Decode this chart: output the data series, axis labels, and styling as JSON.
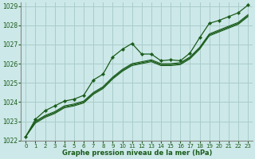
{
  "background_color": "#cce8e8",
  "grid_color": "#aacccc",
  "line_color": "#1a5c1a",
  "xlabel": "Graphe pression niveau de la mer (hPa)",
  "xlim": [
    -0.5,
    23.5
  ],
  "ylim": [
    1022,
    1029.2
  ],
  "yticks": [
    1022,
    1023,
    1024,
    1025,
    1026,
    1027,
    1028,
    1029
  ],
  "xticks": [
    0,
    1,
    2,
    3,
    4,
    5,
    6,
    7,
    8,
    9,
    10,
    11,
    12,
    13,
    14,
    15,
    16,
    17,
    18,
    19,
    20,
    21,
    22,
    23
  ],
  "series_with_markers": [
    1022.2,
    1023.1,
    1023.55,
    1023.8,
    1024.05,
    1024.15,
    1024.35,
    1025.15,
    1025.45,
    1026.35,
    1026.75,
    1027.05,
    1026.5,
    1026.5,
    1026.15,
    1026.2,
    1026.15,
    1026.55,
    1027.35,
    1028.1,
    1028.25,
    1028.45,
    1028.65,
    1029.05
  ],
  "series_linear": [
    [
      1022.2,
      1023.0,
      1023.3,
      1023.5,
      1023.8,
      1023.9,
      1024.05,
      1024.5,
      1024.8,
      1025.3,
      1025.7,
      1026.0,
      1026.1,
      1026.2,
      1026.0,
      1026.0,
      1026.05,
      1026.35,
      1026.85,
      1027.55,
      1027.75,
      1027.95,
      1028.15,
      1028.55
    ],
    [
      1022.2,
      1022.95,
      1023.25,
      1023.45,
      1023.75,
      1023.85,
      1024.0,
      1024.45,
      1024.75,
      1025.25,
      1025.65,
      1025.95,
      1026.05,
      1026.15,
      1025.95,
      1025.95,
      1026.0,
      1026.3,
      1026.8,
      1027.5,
      1027.7,
      1027.9,
      1028.1,
      1028.5
    ],
    [
      1022.2,
      1022.9,
      1023.2,
      1023.4,
      1023.7,
      1023.8,
      1023.95,
      1024.4,
      1024.7,
      1025.2,
      1025.6,
      1025.9,
      1026.0,
      1026.1,
      1025.9,
      1025.9,
      1025.95,
      1026.25,
      1026.75,
      1027.45,
      1027.65,
      1027.85,
      1028.05,
      1028.45
    ]
  ]
}
